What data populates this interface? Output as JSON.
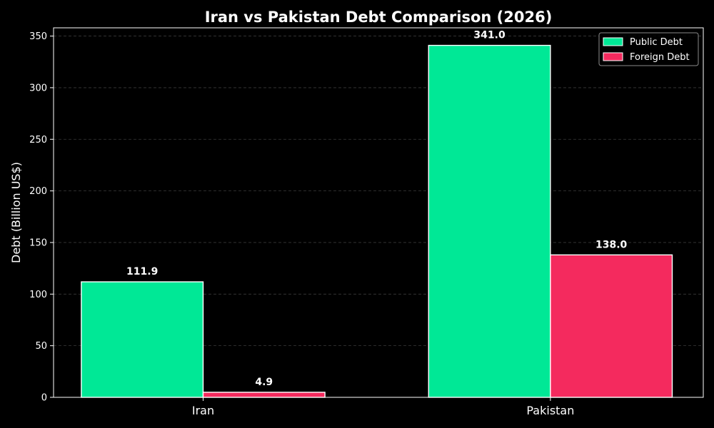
{
  "chart_data": {
    "type": "bar",
    "title": "Iran vs Pakistan Debt Comparison (2026)",
    "xlabel": "",
    "ylabel": "Debt (Billion US$)",
    "categories": [
      "Iran",
      "Pakistan"
    ],
    "series": [
      {
        "name": "Public Debt",
        "values": [
          111.9,
          341.0
        ],
        "labels": [
          "111.9",
          "341.0"
        ],
        "color": "#00e896"
      },
      {
        "name": "Foreign Debt",
        "values": [
          4.9,
          138.0
        ],
        "labels": [
          "4.9",
          "138.0"
        ],
        "color": "#f42a5e"
      }
    ],
    "ylim": [
      0,
      358
    ],
    "yticks": [
      0,
      50,
      100,
      150,
      200,
      250,
      300,
      350
    ],
    "ytick_labels": [
      "0",
      "50",
      "100",
      "150",
      "200",
      "250",
      "300",
      "350"
    ],
    "grid": true,
    "legend_position": "top-right",
    "background_color": "#000000",
    "bar_edge_color": "#ffffff"
  }
}
